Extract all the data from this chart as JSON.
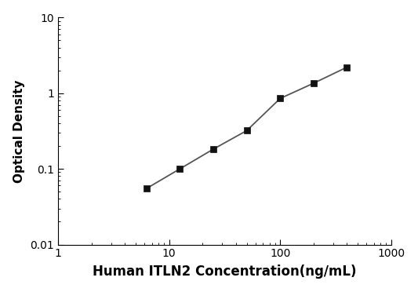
{
  "x": [
    6.25,
    12.5,
    25,
    50,
    100,
    200,
    400
  ],
  "y": [
    0.055,
    0.1,
    0.182,
    0.32,
    0.85,
    1.35,
    2.2
  ],
  "xlim": [
    1,
    1000
  ],
  "ylim": [
    0.01,
    10
  ],
  "xlabel": "Human ITLN2 Concentration(ng/mL)",
  "ylabel": "Optical Density",
  "line_color": "#555555",
  "marker_color": "#111111",
  "marker": "s",
  "marker_size": 6,
  "line_width": 1.3,
  "background_color": "#ffffff",
  "x_ticks": [
    1,
    10,
    100,
    1000
  ],
  "y_ticks": [
    0.01,
    0.1,
    1,
    10
  ],
  "y_tick_labels": [
    "0.01",
    "0.1",
    "1",
    "10"
  ],
  "xlabel_fontsize": 12,
  "ylabel_fontsize": 11,
  "tick_fontsize": 10
}
